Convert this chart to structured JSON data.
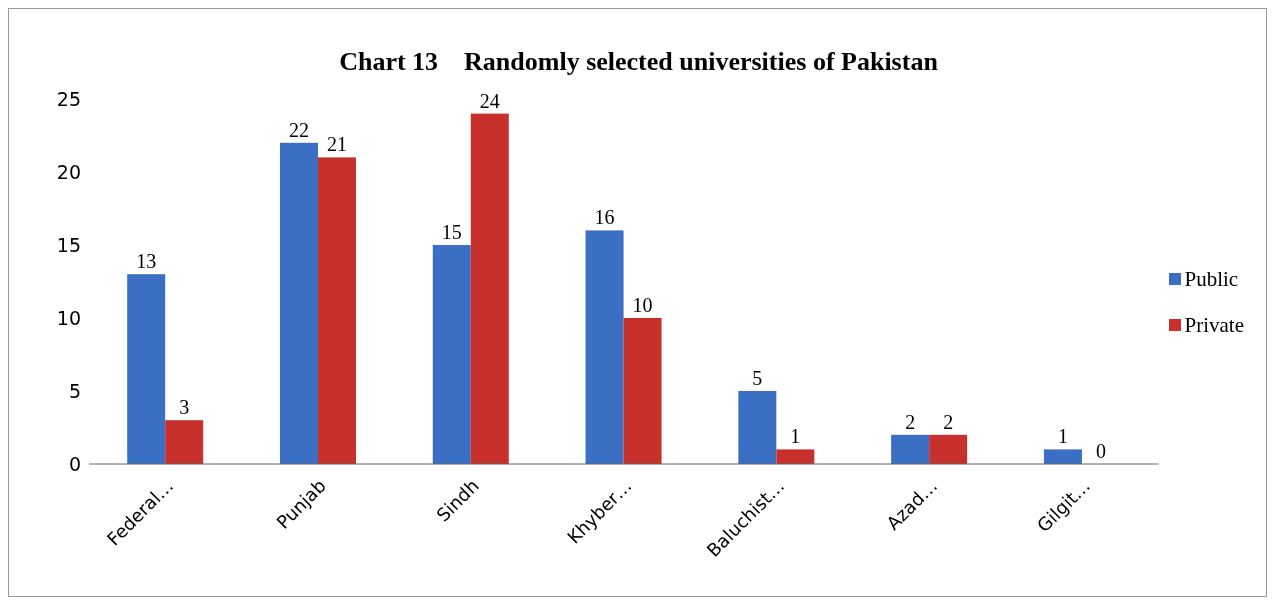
{
  "chart_data": {
    "type": "bar",
    "title": "Chart 13    Randomly selected universities of Pakistan",
    "categories": [
      "Federal…",
      "Punjab",
      "Sindh",
      "Khyber…",
      "Baluchist…",
      "Azad…",
      "Gilgit…"
    ],
    "series": [
      {
        "name": "Public",
        "color": "#3a6fc4",
        "values": [
          13,
          22,
          15,
          16,
          5,
          2,
          1
        ]
      },
      {
        "name": "Private",
        "color": "#c8302c",
        "values": [
          3,
          21,
          24,
          10,
          1,
          2,
          0
        ]
      }
    ],
    "ylim": [
      0,
      25
    ],
    "yticks": [
      0,
      5,
      10,
      15,
      20,
      25
    ],
    "grid": false,
    "legend": "right",
    "data_labels": true
  }
}
